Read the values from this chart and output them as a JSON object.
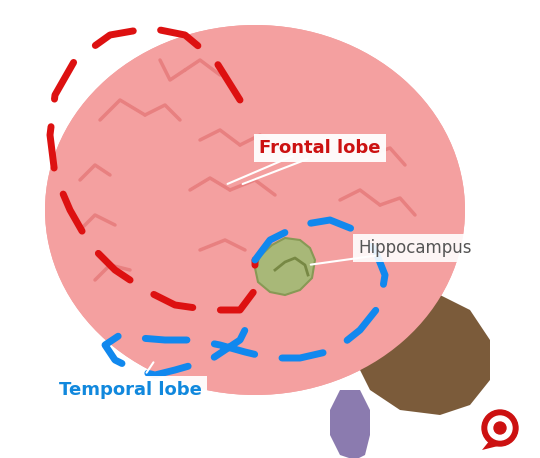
{
  "background_color": "#ffffff",
  "brain_color": "#F4A0A0",
  "brain_darker": "#E88080",
  "brainstem_color": "#7B5B3A",
  "spine_color": "#8B7BAF",
  "hippocampus_color": "#A8B878",
  "frontal_label": "Frontal lobe",
  "frontal_label_color": "#CC1111",
  "temporal_label": "Temporal lobe",
  "temporal_label_color": "#1188DD",
  "hippocampus_label": "Hippocampus",
  "hippocampus_label_color": "#555555",
  "red_dash_color": "#DD1111",
  "blue_dash_color": "#1188EE",
  "title_fontsize": 14,
  "label_fontsize": 13
}
